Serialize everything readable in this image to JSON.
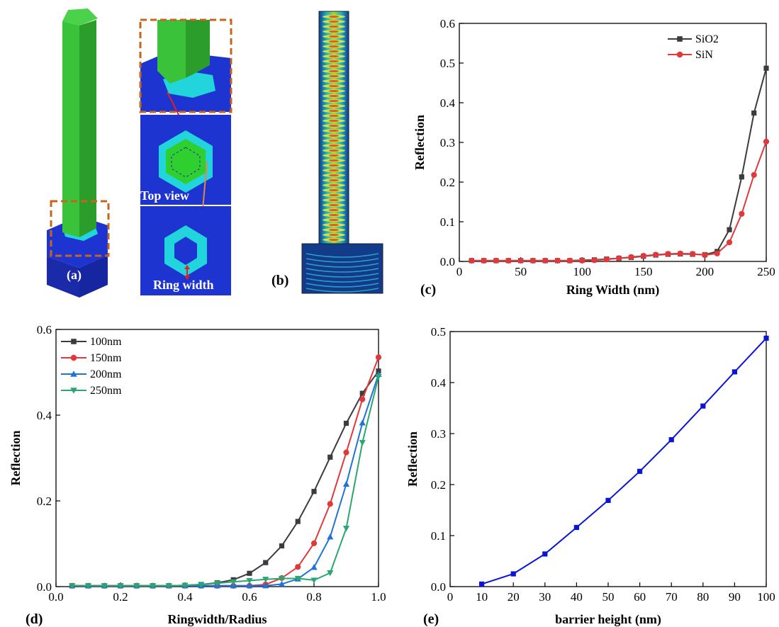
{
  "panels": {
    "a": "(a)",
    "b": "(b)",
    "c": "(c)",
    "d": "(d)",
    "e": "(e)"
  },
  "overlays": {
    "top_view": "Top view",
    "ring_width": "Ring width"
  },
  "colors": {
    "nanowire_green": "#2fb52f",
    "substrate_blue": "#1a2fc8",
    "ring_cyan": "#22d4dc",
    "dashed_box": "#c8641e",
    "sio2": "#3c3c3c",
    "sin": "#e0393c",
    "d_100": "#3c3c3c",
    "d_150": "#e0393c",
    "d_200": "#1f73d6",
    "d_250": "#2aa670",
    "e_line": "#0a14d8"
  },
  "chart_data": [
    {
      "id": "c",
      "type": "line",
      "title": "",
      "xlabel": "Ring Width (nm)",
      "ylabel": "Reflection",
      "xlim": [
        0,
        250
      ],
      "ylim": [
        0,
        0.6
      ],
      "xticks": [
        0,
        50,
        100,
        150,
        200,
        250
      ],
      "yticks": [
        0.0,
        0.1,
        0.2,
        0.3,
        0.4,
        0.5,
        0.6
      ],
      "grid": false,
      "legend_position": "top-right",
      "series": [
        {
          "name": "SiO2",
          "marker": "square",
          "x": [
            10,
            20,
            30,
            40,
            50,
            60,
            70,
            80,
            90,
            100,
            110,
            120,
            130,
            140,
            150,
            160,
            170,
            180,
            190,
            200,
            210,
            220,
            230,
            240,
            250
          ],
          "y": [
            0.002,
            0.002,
            0.002,
            0.002,
            0.002,
            0.002,
            0.002,
            0.002,
            0.002,
            0.003,
            0.004,
            0.006,
            0.008,
            0.01,
            0.013,
            0.016,
            0.018,
            0.019,
            0.018,
            0.017,
            0.025,
            0.08,
            0.213,
            0.374,
            0.487
          ]
        },
        {
          "name": "SiN",
          "marker": "circle",
          "x": [
            10,
            20,
            30,
            40,
            50,
            60,
            70,
            80,
            90,
            100,
            110,
            120,
            130,
            140,
            150,
            160,
            170,
            180,
            190,
            200,
            210,
            220,
            230,
            240,
            250
          ],
          "y": [
            0.002,
            0.002,
            0.002,
            0.002,
            0.002,
            0.002,
            0.002,
            0.002,
            0.002,
            0.002,
            0.003,
            0.005,
            0.008,
            0.011,
            0.014,
            0.017,
            0.019,
            0.02,
            0.019,
            0.016,
            0.02,
            0.048,
            0.12,
            0.218,
            0.302
          ]
        }
      ]
    },
    {
      "id": "d",
      "type": "line",
      "title": "",
      "xlabel": "Ringwidth/Radius",
      "ylabel": "Reflection",
      "xlim": [
        0.0,
        1.0
      ],
      "ylim": [
        0.0,
        0.6
      ],
      "xticks": [
        0.0,
        0.2,
        0.4,
        0.6,
        0.8,
        1.0
      ],
      "yticks": [
        0.0,
        0.2,
        0.4,
        0.6
      ],
      "grid": false,
      "legend_position": "top-left",
      "series": [
        {
          "name": "100nm",
          "marker": "square",
          "x": [
            0.05,
            0.1,
            0.15,
            0.2,
            0.25,
            0.3,
            0.35,
            0.4,
            0.45,
            0.5,
            0.55,
            0.6,
            0.65,
            0.7,
            0.75,
            0.8,
            0.85,
            0.9,
            0.95,
            1.0
          ],
          "y": [
            0.002,
            0.002,
            0.002,
            0.002,
            0.002,
            0.002,
            0.002,
            0.003,
            0.005,
            0.009,
            0.016,
            0.031,
            0.056,
            0.095,
            0.152,
            0.222,
            0.302,
            0.381,
            0.451,
            0.503
          ]
        },
        {
          "name": "150nm",
          "marker": "circle",
          "x": [
            0.05,
            0.1,
            0.15,
            0.2,
            0.25,
            0.3,
            0.35,
            0.4,
            0.45,
            0.5,
            0.55,
            0.6,
            0.65,
            0.7,
            0.75,
            0.8,
            0.85,
            0.9,
            0.95,
            1.0
          ],
          "y": [
            0.002,
            0.002,
            0.002,
            0.002,
            0.002,
            0.002,
            0.002,
            0.002,
            0.002,
            0.002,
            0.002,
            0.002,
            0.005,
            0.02,
            0.046,
            0.101,
            0.193,
            0.313,
            0.437,
            0.535
          ]
        },
        {
          "name": "200nm",
          "marker": "triangle-up",
          "x": [
            0.05,
            0.1,
            0.15,
            0.2,
            0.25,
            0.3,
            0.35,
            0.4,
            0.45,
            0.5,
            0.55,
            0.6,
            0.65,
            0.7,
            0.75,
            0.8,
            0.85,
            0.9,
            0.95,
            1.0
          ],
          "y": [
            0.002,
            0.002,
            0.002,
            0.002,
            0.002,
            0.002,
            0.002,
            0.002,
            0.002,
            0.002,
            0.002,
            0.002,
            0.002,
            0.006,
            0.018,
            0.045,
            0.116,
            0.239,
            0.382,
            0.495
          ]
        },
        {
          "name": "250nm",
          "marker": "triangle-down",
          "x": [
            0.05,
            0.1,
            0.15,
            0.2,
            0.25,
            0.3,
            0.35,
            0.4,
            0.45,
            0.5,
            0.55,
            0.6,
            0.65,
            0.7,
            0.75,
            0.8,
            0.85,
            0.9,
            0.95,
            1.0
          ],
          "y": [
            0.002,
            0.002,
            0.002,
            0.002,
            0.002,
            0.002,
            0.002,
            0.003,
            0.005,
            0.008,
            0.011,
            0.014,
            0.017,
            0.019,
            0.019,
            0.015,
            0.032,
            0.136,
            0.336,
            0.49
          ]
        }
      ]
    },
    {
      "id": "e",
      "type": "line",
      "title": "",
      "xlabel": "barrier height (nm)",
      "ylabel": "Reflection",
      "xlim": [
        0,
        100
      ],
      "ylim": [
        0.0,
        0.5
      ],
      "xticks": [
        0,
        10,
        20,
        30,
        40,
        50,
        60,
        70,
        80,
        90,
        100
      ],
      "yticks": [
        0.0,
        0.1,
        0.2,
        0.3,
        0.4,
        0.5
      ],
      "grid": false,
      "series": [
        {
          "marker": "square",
          "x": [
            10,
            20,
            30,
            40,
            50,
            60,
            70,
            80,
            90,
            100
          ],
          "y": [
            0.005,
            0.025,
            0.064,
            0.116,
            0.169,
            0.226,
            0.288,
            0.354,
            0.421,
            0.487
          ]
        }
      ]
    }
  ]
}
